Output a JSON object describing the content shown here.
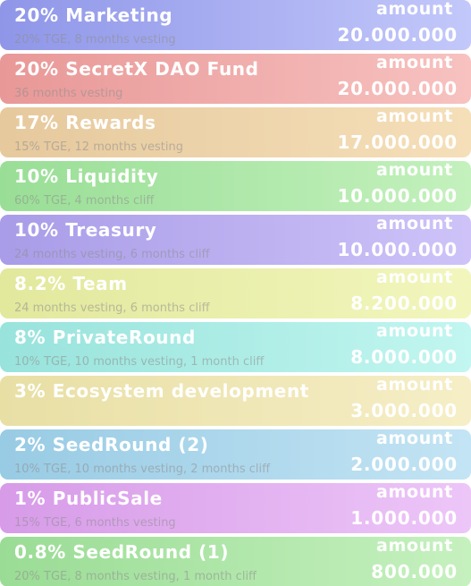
{
  "allocations": [
    {
      "title": "20% Marketing",
      "subtitle": "20% TGE, 8 months vesting",
      "amount_label": "amount",
      "amount": "20.000.000",
      "color_from": "#8f96e8",
      "color_to": "#c3c8fa"
    },
    {
      "title": "20% SecretX DAO Fund",
      "subtitle": "36 months vesting",
      "amount_label": "amount",
      "amount": "20.000.000",
      "color_from": "#e89897",
      "color_to": "#f7c2c0"
    },
    {
      "title": "17% Rewards",
      "subtitle": "15% TGE, 12 months vesting",
      "amount_label": "amount",
      "amount": "17.000.000",
      "color_from": "#e6c99d",
      "color_to": "#f5dfb9"
    },
    {
      "title": "10% Liquidity",
      "subtitle": "60% TGE, 4 months cliff",
      "amount_label": "amount",
      "amount": "10.000.000",
      "color_from": "#99de96",
      "color_to": "#c4f1bd"
    },
    {
      "title": "10% Treasury",
      "subtitle": "24 months vesting, 6 months cliff",
      "amount_label": "amount",
      "amount": "10.000.000",
      "color_from": "#a99ce8",
      "color_to": "#cec3f8"
    },
    {
      "title": "8.2% Team",
      "subtitle": "24 months vesting, 6 months cliff",
      "amount_label": "amount",
      "amount": "8.200.000",
      "color_from": "#e2e89c",
      "color_to": "#f2f6bd"
    },
    {
      "title": "8% PrivateRound",
      "subtitle": "10% TGE, 10 months vesting, 1 month cliff",
      "amount_label": "amount",
      "amount": "8.000.000",
      "color_from": "#98e3dc",
      "color_to": "#c2f6f0"
    },
    {
      "title": "3% Ecosystem development",
      "subtitle": "",
      "amount_label": "amount",
      "amount": "3.000.000",
      "color_from": "#e8dfa5",
      "color_to": "#f6eec6"
    },
    {
      "title": "2% SeedRound (2)",
      "subtitle": "10% TGE, 10 months vesting, 2 months cliff",
      "amount_label": "amount",
      "amount": "2.000.000",
      "color_from": "#98cbe4",
      "color_to": "#c3e4f4"
    },
    {
      "title": "1% PublicSale",
      "subtitle": "15% TGE, 6 months vesting",
      "amount_label": "amount",
      "amount": "1.000.000",
      "color_from": "#d79be8",
      "color_to": "#edc6f8"
    },
    {
      "title": "0.8% SeedRound (1)",
      "subtitle": "20% TGE, 8 months vesting, 1 month cliff",
      "amount_label": "amount",
      "amount": "800.000",
      "color_from": "#9adc95",
      "color_to": "#c6f1bf"
    }
  ]
}
